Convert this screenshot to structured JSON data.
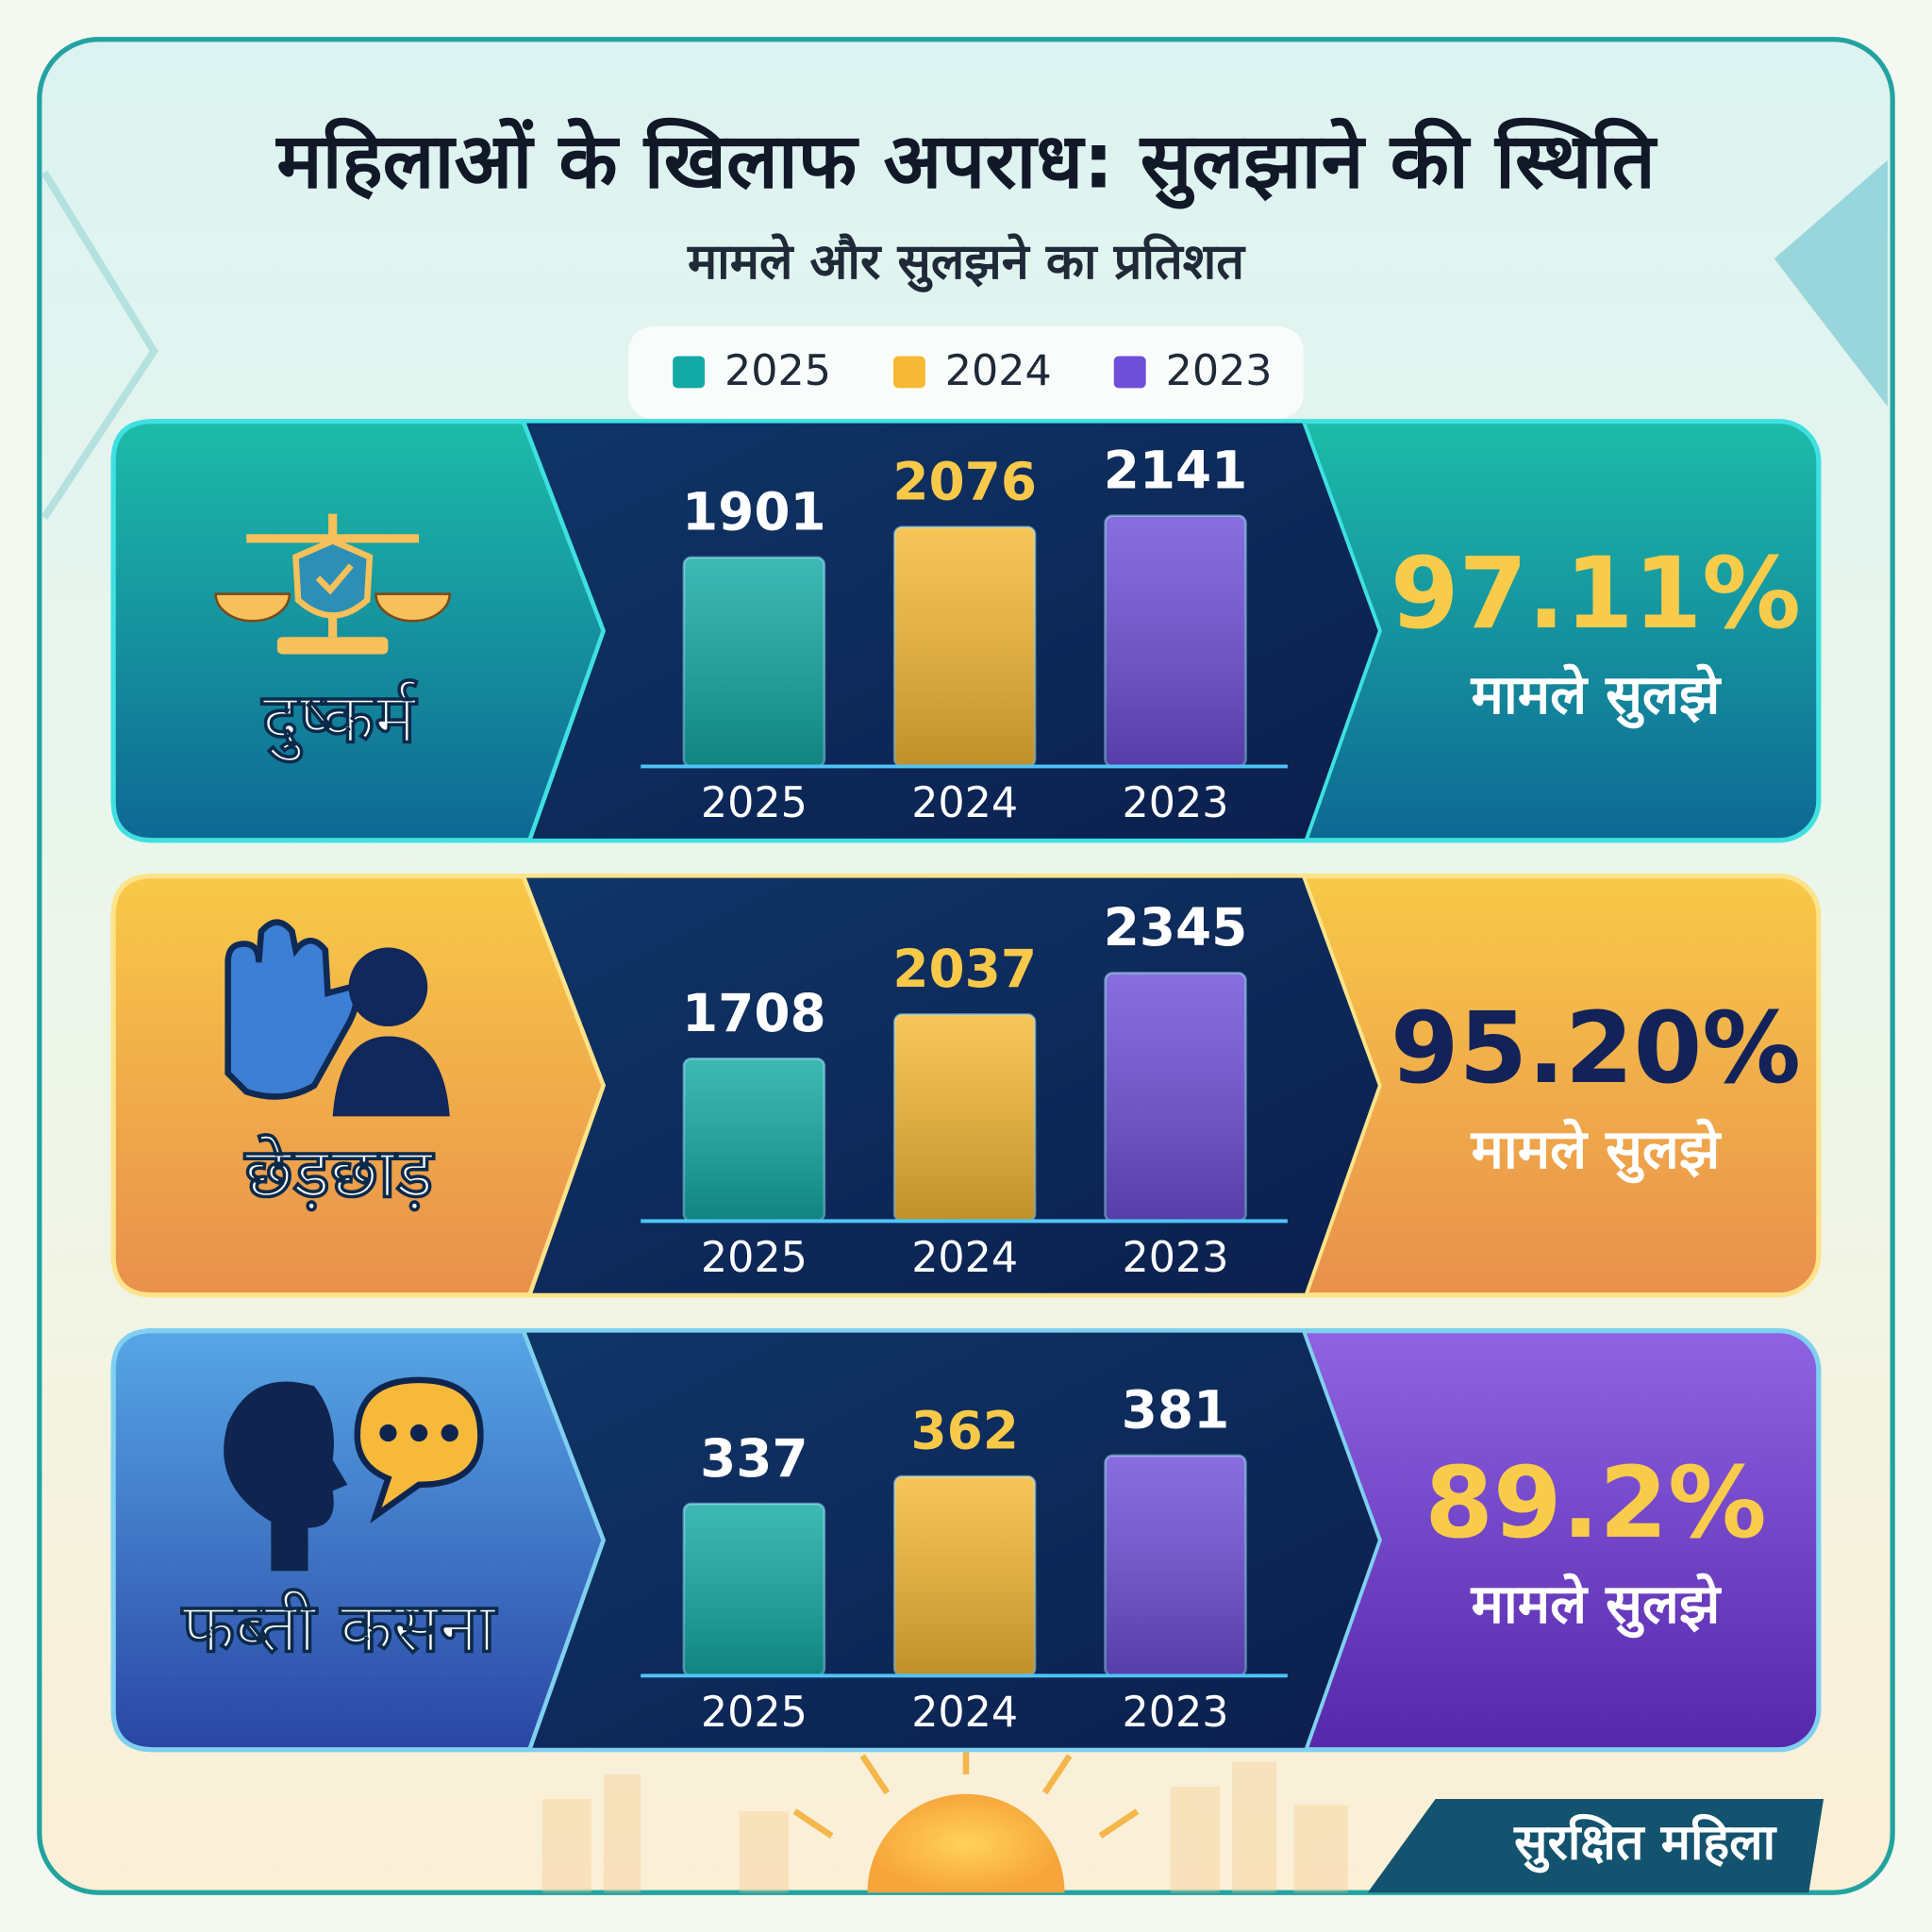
{
  "title": "महिलाओं के खिलाफ अपराध: सुलझाने की स्थिति",
  "subtitle": "मामले और सुलझने का प्रतिशत",
  "legend": {
    "items": [
      {
        "label": "2025",
        "color": "#13a9a4"
      },
      {
        "label": "2024",
        "color": "#f5b935"
      },
      {
        "label": "2023",
        "color": "#6d4fd8"
      }
    ]
  },
  "chart_data": [
    {
      "type": "bar",
      "title": "दुष्कर्म",
      "categories": [
        "2025",
        "2024",
        "2023"
      ],
      "values": [
        1901,
        2076,
        2141
      ],
      "ylim": [
        700,
        2400
      ],
      "rate": {
        "value": 97.11,
        "label": "97.11%",
        "caption": "मामले सुलझे"
      }
    },
    {
      "type": "bar",
      "title": "छेड़छाड़",
      "categories": [
        "2025",
        "2024",
        "2023"
      ],
      "values": [
        1708,
        2037,
        2345
      ],
      "ylim": [
        500,
        2700
      ],
      "rate": {
        "value": 95.2,
        "label": "95.20%",
        "caption": "मामले सुलझे"
      }
    },
    {
      "type": "bar",
      "title": "फब्ती कसना",
      "categories": [
        "2025",
        "2024",
        "2023"
      ],
      "values": [
        337,
        362,
        381
      ],
      "ylim": [
        180,
        450
      ],
      "rate": {
        "value": 89.2,
        "label": "89.2%",
        "caption": "मामले सुलझे"
      }
    }
  ],
  "footer": "सुरक्षित महिला"
}
